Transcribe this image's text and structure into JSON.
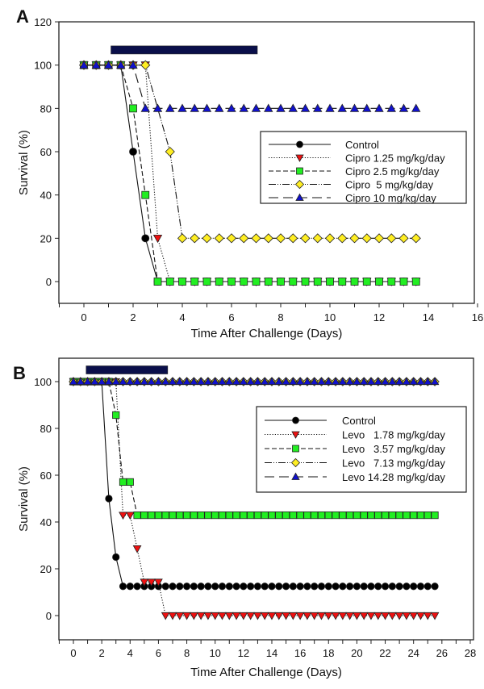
{
  "chart_data": [
    {
      "panel": "A",
      "type": "line",
      "title": "",
      "xlabel": "Time After Challenge (Days)",
      "ylabel": "Survival (%)",
      "xlim": [
        -1,
        16
      ],
      "ylim": [
        -10,
        120
      ],
      "xticks": [
        0,
        2,
        4,
        6,
        8,
        10,
        12,
        14,
        16
      ],
      "yticks": [
        0,
        20,
        40,
        60,
        80,
        100,
        120
      ],
      "grid": false,
      "legend_position": "center-right",
      "treatment_bar": {
        "x_start": 1.1,
        "x_end": 7.05,
        "y": 107,
        "color": "#0a0f4a"
      },
      "series": [
        {
          "name": "Control",
          "marker": "circle",
          "color": "#000000",
          "line": "solid",
          "x": [
            0,
            0.5,
            1,
            1.5,
            2,
            2.5,
            3,
            3.5,
            4,
            4.5,
            5,
            5.5,
            6,
            6.5,
            7,
            7.5,
            8,
            8.5,
            9,
            9.5,
            10,
            10.5,
            11,
            11.5,
            12,
            12.5,
            13,
            13.5
          ],
          "y": [
            100,
            100,
            100,
            100,
            60,
            20,
            0,
            0,
            0,
            0,
            0,
            0,
            0,
            0,
            0,
            0,
            0,
            0,
            0,
            0,
            0,
            0,
            0,
            0,
            0,
            0,
            0,
            0
          ]
        },
        {
          "name": "Cipro 1.25 mg/kg/day",
          "marker": "triangle-down",
          "color": "#ee1111",
          "line": "dotted",
          "x": [
            0,
            0.5,
            1,
            1.5,
            2,
            2.5,
            3,
            3.5,
            4,
            4.5,
            5,
            5.5,
            6,
            6.5,
            7,
            7.5,
            8,
            8.5,
            9,
            9.5,
            10,
            10.5,
            11,
            11.5,
            12,
            12.5,
            13,
            13.5
          ],
          "y": [
            100,
            100,
            100,
            100,
            100,
            100,
            20,
            0,
            0,
            0,
            0,
            0,
            0,
            0,
            0,
            0,
            0,
            0,
            0,
            0,
            0,
            0,
            0,
            0,
            0,
            0,
            0,
            0
          ]
        },
        {
          "name": "Cipro 2.5 mg/kg/day",
          "marker": "square",
          "color": "#22ee22",
          "line": "dashed",
          "x": [
            0,
            0.5,
            1,
            1.5,
            2,
            2.5,
            3,
            3.5,
            4,
            4.5,
            5,
            5.5,
            6,
            6.5,
            7,
            7.5,
            8,
            8.5,
            9,
            9.5,
            10,
            10.5,
            11,
            11.5,
            12,
            12.5,
            13,
            13.5
          ],
          "y": [
            100,
            100,
            100,
            100,
            80,
            40,
            0,
            0,
            0,
            0,
            0,
            0,
            0,
            0,
            0,
            0,
            0,
            0,
            0,
            0,
            0,
            0,
            0,
            0,
            0,
            0,
            0,
            0
          ]
        },
        {
          "name": "Cipro  5 mg/kg/day",
          "marker": "diamond",
          "color": "#ffee22",
          "line": "dash-dot-dot",
          "x": [
            0,
            0.5,
            1,
            1.5,
            2,
            2.5,
            3.5,
            4,
            4.5,
            5,
            5.5,
            6,
            6.5,
            7,
            7.5,
            8,
            8.5,
            9,
            9.5,
            10,
            10.5,
            11,
            11.5,
            12,
            12.5,
            13,
            13.5
          ],
          "y": [
            100,
            100,
            100,
            100,
            100,
            100,
            60,
            20,
            20,
            20,
            20,
            20,
            20,
            20,
            20,
            20,
            20,
            20,
            20,
            20,
            20,
            20,
            20,
            20,
            20,
            20,
            20
          ]
        },
        {
          "name": "Cipro 10 mg/kg/day",
          "marker": "triangle-up",
          "color": "#1111cc",
          "line": "long-dash",
          "x": [
            0,
            0.5,
            1,
            1.5,
            2,
            2.5,
            3,
            3.5,
            4,
            4.5,
            5,
            5.5,
            6,
            6.5,
            7,
            7.5,
            8,
            8.5,
            9,
            9.5,
            10,
            10.5,
            11,
            11.5,
            12,
            12.5,
            13,
            13.5
          ],
          "y": [
            100,
            100,
            100,
            100,
            100,
            80,
            80,
            80,
            80,
            80,
            80,
            80,
            80,
            80,
            80,
            80,
            80,
            80,
            80,
            80,
            80,
            80,
            80,
            80,
            80,
            80,
            80,
            80
          ]
        }
      ]
    },
    {
      "panel": "B",
      "type": "line",
      "title": "",
      "xlabel": "Time After Challenge (Days)",
      "ylabel": "Survival (%)",
      "xlim": [
        -1,
        28
      ],
      "ylim": [
        -10,
        110
      ],
      "xticks": [
        0,
        2,
        4,
        6,
        8,
        10,
        12,
        14,
        16,
        18,
        20,
        22,
        24,
        26,
        28
      ],
      "yticks": [
        0,
        20,
        40,
        60,
        80,
        100
      ],
      "grid": false,
      "legend_position": "center-right",
      "treatment_bar": {
        "x_start": 0.9,
        "x_end": 6.65,
        "y": 105,
        "color": "#0a0f4a"
      },
      "series": [
        {
          "name": "Control",
          "marker": "circle",
          "color": "#000000",
          "line": "solid",
          "x_start": 0,
          "x_step": 0.5,
          "y": [
            100,
            100,
            100,
            100,
            100,
            50,
            25,
            12.5,
            12.5,
            12.5,
            12.5,
            12.5,
            12.5,
            12.5,
            12.5,
            12.5,
            12.5,
            12.5,
            12.5,
            12.5,
            12.5,
            12.5,
            12.5,
            12.5,
            12.5,
            12.5,
            12.5,
            12.5,
            12.5,
            12.5,
            12.5,
            12.5,
            12.5,
            12.5,
            12.5,
            12.5,
            12.5,
            12.5,
            12.5,
            12.5,
            12.5,
            12.5,
            12.5,
            12.5,
            12.5,
            12.5,
            12.5,
            12.5,
            12.5,
            12.5,
            12.5,
            12.5
          ]
        },
        {
          "name": "Levo   1.78 mg/kg/day",
          "marker": "triangle-down",
          "color": "#ee1111",
          "line": "dotted",
          "x_start": 0,
          "x_step": 0.5,
          "y": [
            100,
            100,
            100,
            100,
            100,
            100,
            100,
            42.9,
            42.9,
            28.6,
            14.3,
            14.3,
            14.3,
            0,
            0,
            0,
            0,
            0,
            0,
            0,
            0,
            0,
            0,
            0,
            0,
            0,
            0,
            0,
            0,
            0,
            0,
            0,
            0,
            0,
            0,
            0,
            0,
            0,
            0,
            0,
            0,
            0,
            0,
            0,
            0,
            0,
            0,
            0,
            0,
            0,
            0,
            0
          ]
        },
        {
          "name": "Levo   3.57 mg/kg/day",
          "marker": "square",
          "color": "#22ee22",
          "line": "dashed",
          "x_start": 0,
          "x_step": 0.5,
          "y": [
            100,
            100,
            100,
            100,
            100,
            100,
            85.7,
            57.1,
            57.1,
            42.9,
            42.9,
            42.9,
            42.9,
            42.9,
            42.9,
            42.9,
            42.9,
            42.9,
            42.9,
            42.9,
            42.9,
            42.9,
            42.9,
            42.9,
            42.9,
            42.9,
            42.9,
            42.9,
            42.9,
            42.9,
            42.9,
            42.9,
            42.9,
            42.9,
            42.9,
            42.9,
            42.9,
            42.9,
            42.9,
            42.9,
            42.9,
            42.9,
            42.9,
            42.9,
            42.9,
            42.9,
            42.9,
            42.9,
            42.9,
            42.9,
            42.9,
            42.9
          ]
        },
        {
          "name": "Levo   7.13 mg/kg/day",
          "marker": "diamond",
          "color": "#ffee22",
          "line": "dash-dot-dot",
          "x_start": 0,
          "x_step": 0.5,
          "y": [
            100,
            100,
            100,
            100,
            100,
            100,
            100,
            100,
            100,
            100,
            100,
            100,
            100,
            100,
            100,
            100,
            100,
            100,
            100,
            100,
            100,
            100,
            100,
            100,
            100,
            100,
            100,
            100,
            100,
            100,
            100,
            100,
            100,
            100,
            100,
            100,
            100,
            100,
            100,
            100,
            100,
            100,
            100,
            100,
            100,
            100,
            100,
            100,
            100,
            100,
            100,
            100
          ]
        },
        {
          "name": "Levo 14.28 mg/kg/day",
          "marker": "triangle-up",
          "color": "#1111cc",
          "line": "long-dash",
          "x_start": 0,
          "x_step": 0.5,
          "y": [
            100,
            100,
            100,
            100,
            100,
            100,
            100,
            100,
            100,
            100,
            100,
            100,
            100,
            100,
            100,
            100,
            100,
            100,
            100,
            100,
            100,
            100,
            100,
            100,
            100,
            100,
            100,
            100,
            100,
            100,
            100,
            100,
            100,
            100,
            100,
            100,
            100,
            100,
            100,
            100,
            100,
            100,
            100,
            100,
            100,
            100,
            100,
            100,
            100,
            100,
            100,
            100
          ]
        }
      ]
    }
  ]
}
